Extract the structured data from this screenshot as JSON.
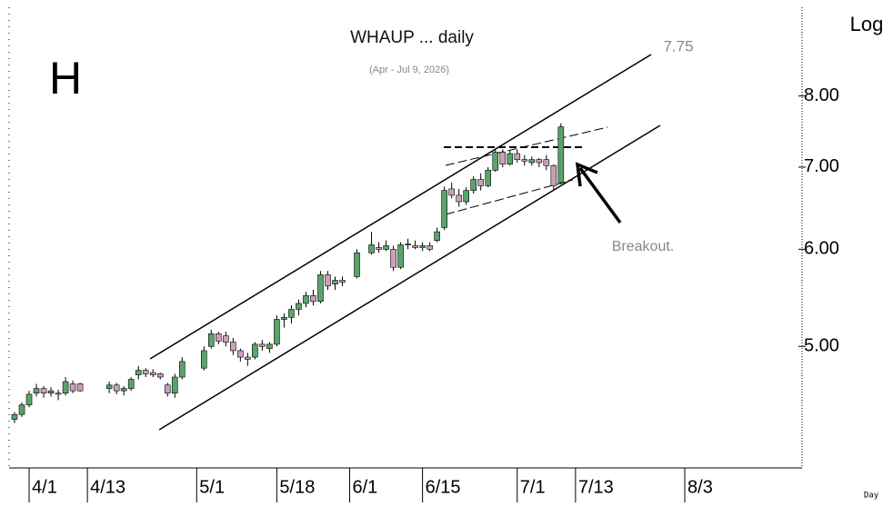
{
  "chart_data": {
    "type": "candlestick",
    "title": "WHAUP ... daily",
    "subtitle": "(Apr - Jul 9, 2026)",
    "panel_letter": "H",
    "scale_label": "Log",
    "x_axis_label": "Day",
    "annotations": [
      "7.75",
      "Breakout."
    ],
    "log_scale": true,
    "up_color": "#5aa36c",
    "down_color": "#c8a2b6",
    "x": [
      0,
      1,
      2,
      3,
      4,
      5,
      6,
      7,
      8,
      9,
      13,
      14,
      15,
      16,
      17,
      18,
      19,
      20,
      21,
      22,
      23,
      26,
      27,
      28,
      29,
      30,
      31,
      32,
      33,
      34,
      35,
      36,
      37,
      38,
      39,
      40,
      41,
      42,
      43,
      44,
      45,
      47,
      49,
      50,
      51,
      52,
      53,
      54,
      55,
      56,
      57,
      58,
      59,
      60,
      61,
      62,
      63,
      64,
      65,
      66,
      67,
      68,
      69,
      70,
      71,
      72,
      73,
      74,
      75
    ],
    "open": [
      4.36,
      4.4,
      4.48,
      4.58,
      4.62,
      4.58,
      4.58,
      4.58,
      4.66,
      4.66,
      4.62,
      4.65,
      4.6,
      4.62,
      4.74,
      4.78,
      4.76,
      4.75,
      4.65,
      4.58,
      4.72,
      4.8,
      5.0,
      5.12,
      5.1,
      5.04,
      4.96,
      4.9,
      4.9,
      5.02,
      4.98,
      5.02,
      5.26,
      5.28,
      5.36,
      5.42,
      5.5,
      5.44,
      5.72,
      5.62,
      5.66,
      5.7,
      5.96,
      6.02,
      6.0,
      6.0,
      5.8,
      6.05,
      6.04,
      6.02,
      6.04,
      6.1,
      6.25,
      6.72,
      6.64,
      6.56,
      6.7,
      6.84,
      6.76,
      6.96,
      7.2,
      7.04,
      7.18,
      7.1,
      7.06,
      7.1,
      7.1,
      7.02,
      6.8
    ],
    "high": [
      4.42,
      4.5,
      4.6,
      4.66,
      4.64,
      4.63,
      4.61,
      4.72,
      4.69,
      4.67,
      4.68,
      4.67,
      4.64,
      4.72,
      4.82,
      4.8,
      4.79,
      4.76,
      4.67,
      4.75,
      4.9,
      5.0,
      5.16,
      5.14,
      5.14,
      5.08,
      4.98,
      4.94,
      5.04,
      5.06,
      5.04,
      5.3,
      5.32,
      5.4,
      5.46,
      5.54,
      5.56,
      5.76,
      5.76,
      5.7,
      5.7,
      6.0,
      6.2,
      6.08,
      6.1,
      6.04,
      6.08,
      6.12,
      6.1,
      6.08,
      6.08,
      6.25,
      6.75,
      6.8,
      6.72,
      6.74,
      6.88,
      6.92,
      7.0,
      7.24,
      7.24,
      7.22,
      7.24,
      7.16,
      7.14,
      7.12,
      7.16,
      7.04,
      7.6
    ],
    "low": [
      4.33,
      4.38,
      4.46,
      4.55,
      4.54,
      4.55,
      4.52,
      4.56,
      4.58,
      4.59,
      4.58,
      4.57,
      4.56,
      4.6,
      4.7,
      4.72,
      4.72,
      4.7,
      4.55,
      4.54,
      4.7,
      4.78,
      4.98,
      5.02,
      5.0,
      4.92,
      4.86,
      4.82,
      4.88,
      4.96,
      4.94,
      5.0,
      5.18,
      5.22,
      5.3,
      5.38,
      5.4,
      5.42,
      5.56,
      5.56,
      5.6,
      5.68,
      5.94,
      5.96,
      5.98,
      5.76,
      5.78,
      6.0,
      6.0,
      5.98,
      5.98,
      6.08,
      6.22,
      6.6,
      6.5,
      6.52,
      6.66,
      6.7,
      6.74,
      6.94,
      7.0,
      7.02,
      7.06,
      7.02,
      7.02,
      7.0,
      6.96,
      6.7,
      6.78
    ],
    "close": [
      4.4,
      4.48,
      4.57,
      4.62,
      4.58,
      4.6,
      4.57,
      4.68,
      4.6,
      4.6,
      4.65,
      4.6,
      4.62,
      4.7,
      4.78,
      4.75,
      4.74,
      4.72,
      4.58,
      4.72,
      4.86,
      4.96,
      5.12,
      5.05,
      5.04,
      4.96,
      4.9,
      4.88,
      5.02,
      5.0,
      5.02,
      5.26,
      5.28,
      5.36,
      5.42,
      5.5,
      5.44,
      5.72,
      5.6,
      5.66,
      5.64,
      5.96,
      6.05,
      6.0,
      6.04,
      5.8,
      6.05,
      6.06,
      6.02,
      6.04,
      6.0,
      6.2,
      6.7,
      6.64,
      6.56,
      6.7,
      6.84,
      6.76,
      6.96,
      7.2,
      7.04,
      7.18,
      7.1,
      7.08,
      7.1,
      7.06,
      7.02,
      6.76,
      7.55
    ],
    "xlim": [
      -0.75,
      108.1
    ],
    "ylim": [
      3.98,
      9.58
    ],
    "xticks": [
      {
        "value": 2,
        "label": "4/1"
      },
      {
        "value": 10,
        "label": "4/13"
      },
      {
        "value": 25,
        "label": "5/1"
      },
      {
        "value": 36,
        "label": "5/18"
      },
      {
        "value": 46,
        "label": "6/1"
      },
      {
        "value": 56,
        "label": "6/15"
      },
      {
        "value": 69,
        "label": "7/1"
      },
      {
        "value": 77,
        "label": "7/13"
      },
      {
        "value": 92,
        "label": "8/3"
      }
    ],
    "yticks": [
      {
        "value": 5,
        "label": "5.00"
      },
      {
        "value": 6,
        "label": "6.00"
      },
      {
        "value": 7,
        "label": "7.00"
      },
      {
        "value": 8,
        "label": "8.00"
      }
    ]
  }
}
